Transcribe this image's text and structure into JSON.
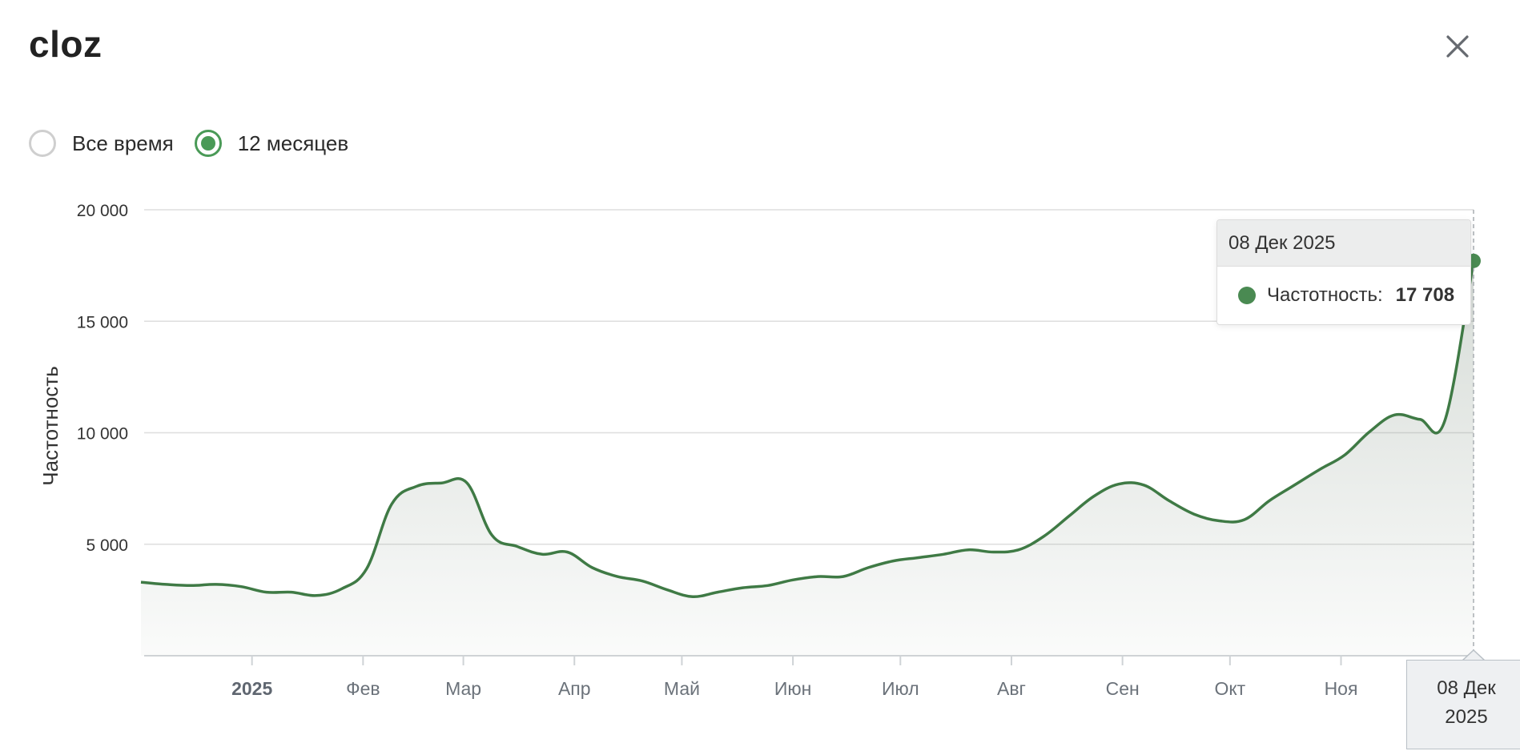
{
  "header": {
    "title": "cloz"
  },
  "filters": {
    "options": [
      {
        "label": "Все время",
        "checked": false
      },
      {
        "label": "12 месяцев",
        "checked": true
      }
    ]
  },
  "colors": {
    "accent": "#4a9a57",
    "line": "#3f7a45",
    "area": "#8a9a8c"
  },
  "chart_data": {
    "type": "area",
    "ylabel": "Частотность",
    "ylim": [
      0,
      20000
    ],
    "yticks": [
      {
        "value": 5000,
        "label": "5 000"
      },
      {
        "value": 10000,
        "label": "10 000"
      },
      {
        "value": 15000,
        "label": "15 000"
      },
      {
        "value": 20000,
        "label": "20 000"
      }
    ],
    "xlim": [
      "2024-12-01",
      "2025-12-08"
    ],
    "xticks": [
      {
        "date": "2025-01-01",
        "label": "2025",
        "bold": true
      },
      {
        "date": "2025-02-01",
        "label": "Фев"
      },
      {
        "date": "2025-03-01",
        "label": "Мар"
      },
      {
        "date": "2025-04-01",
        "label": "Апр"
      },
      {
        "date": "2025-05-01",
        "label": "Май"
      },
      {
        "date": "2025-06-01",
        "label": "Июн"
      },
      {
        "date": "2025-07-01",
        "label": "Июл"
      },
      {
        "date": "2025-08-01",
        "label": "Авг"
      },
      {
        "date": "2025-09-01",
        "label": "Сен"
      },
      {
        "date": "2025-10-01",
        "label": "Окт"
      },
      {
        "date": "2025-11-01",
        "label": "Ноя"
      }
    ],
    "series": [
      {
        "name": "Частотность",
        "points": [
          [
            "2024-12-01",
            3300
          ],
          [
            "2024-12-08",
            3200
          ],
          [
            "2024-12-15",
            3150
          ],
          [
            "2024-12-22",
            3200
          ],
          [
            "2024-12-29",
            3100
          ],
          [
            "2025-01-05",
            2850
          ],
          [
            "2025-01-12",
            2850
          ],
          [
            "2025-01-19",
            2700
          ],
          [
            "2025-01-26",
            3000
          ],
          [
            "2025-02-02",
            3900
          ],
          [
            "2025-02-09",
            6800
          ],
          [
            "2025-02-16",
            7600
          ],
          [
            "2025-02-23",
            7750
          ],
          [
            "2025-03-02",
            7750
          ],
          [
            "2025-03-09",
            5400
          ],
          [
            "2025-03-16",
            4900
          ],
          [
            "2025-03-23",
            4550
          ],
          [
            "2025-03-30",
            4650
          ],
          [
            "2025-04-06",
            3950
          ],
          [
            "2025-04-13",
            3550
          ],
          [
            "2025-04-20",
            3350
          ],
          [
            "2025-04-27",
            2950
          ],
          [
            "2025-05-04",
            2650
          ],
          [
            "2025-05-11",
            2850
          ],
          [
            "2025-05-18",
            3050
          ],
          [
            "2025-05-25",
            3150
          ],
          [
            "2025-06-01",
            3400
          ],
          [
            "2025-06-08",
            3550
          ],
          [
            "2025-06-15",
            3550
          ],
          [
            "2025-06-22",
            3950
          ],
          [
            "2025-06-29",
            4250
          ],
          [
            "2025-07-06",
            4400
          ],
          [
            "2025-07-13",
            4550
          ],
          [
            "2025-07-20",
            4750
          ],
          [
            "2025-07-27",
            4650
          ],
          [
            "2025-08-03",
            4750
          ],
          [
            "2025-08-10",
            5350
          ],
          [
            "2025-08-17",
            6250
          ],
          [
            "2025-08-24",
            7150
          ],
          [
            "2025-08-31",
            7700
          ],
          [
            "2025-09-07",
            7650
          ],
          [
            "2025-09-14",
            6950
          ],
          [
            "2025-09-21",
            6350
          ],
          [
            "2025-09-28",
            6050
          ],
          [
            "2025-10-05",
            6100
          ],
          [
            "2025-10-12",
            6950
          ],
          [
            "2025-10-19",
            7650
          ],
          [
            "2025-10-26",
            8350
          ],
          [
            "2025-11-02",
            9000
          ],
          [
            "2025-11-09",
            10050
          ],
          [
            "2025-11-16",
            10800
          ],
          [
            "2025-11-23",
            10600
          ],
          [
            "2025-11-30",
            10550
          ],
          [
            "2025-12-08",
            17708
          ]
        ]
      }
    ],
    "tooltip": {
      "date": "08 Дек 2025",
      "series_label": "Частотность:",
      "value_label": "17 708"
    },
    "crosshair_label": {
      "line1": "08 Дек",
      "line2": "2025"
    }
  }
}
